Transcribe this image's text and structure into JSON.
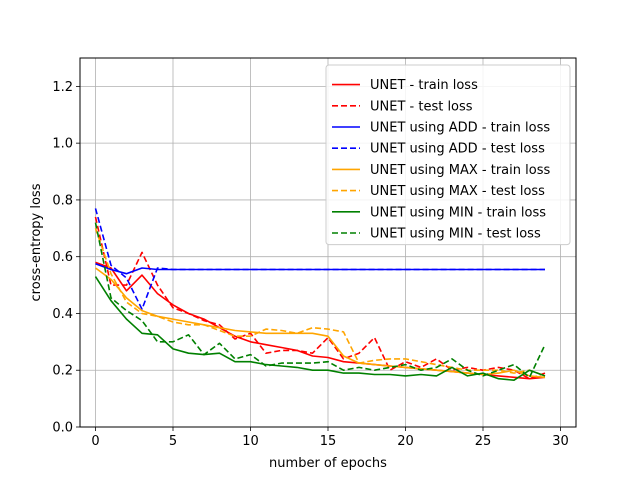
{
  "chart_data": {
    "type": "line",
    "xlabel": "number of epochs",
    "ylabel": "cross-entropy loss",
    "xlim": [
      -1,
      31
    ],
    "ylim": [
      0,
      1.3
    ],
    "xticks": [
      0,
      5,
      10,
      15,
      20,
      25,
      30
    ],
    "yticks": [
      0.0,
      0.2,
      0.4,
      0.6,
      0.8,
      1.0,
      1.2
    ],
    "xtick_labels": [
      "0",
      "5",
      "10",
      "15",
      "20",
      "25",
      "30"
    ],
    "ytick_labels": [
      "0.0",
      "0.2",
      "0.4",
      "0.6",
      "0.8",
      "1.0",
      "1.2"
    ],
    "grid": true,
    "legend_position": "upper-right",
    "x": [
      0,
      1,
      2,
      3,
      4,
      5,
      6,
      7,
      8,
      9,
      10,
      11,
      12,
      13,
      14,
      15,
      16,
      17,
      18,
      19,
      20,
      21,
      22,
      23,
      24,
      25,
      26,
      27,
      28,
      29
    ],
    "series": [
      {
        "name": "UNET - train loss",
        "color": "#ff0000",
        "dash": "solid",
        "values": [
          0.58,
          0.56,
          0.48,
          0.535,
          0.47,
          0.43,
          0.4,
          0.38,
          0.35,
          0.32,
          0.3,
          0.29,
          0.28,
          0.27,
          0.25,
          0.245,
          0.23,
          0.225,
          0.22,
          0.215,
          0.21,
          0.205,
          0.2,
          0.195,
          0.19,
          0.185,
          0.18,
          0.175,
          0.17,
          0.175
        ]
      },
      {
        "name": "UNET - test loss",
        "color": "#ff0000",
        "dash": "dashed",
        "values": [
          0.74,
          0.5,
          0.5,
          0.615,
          0.5,
          0.42,
          0.4,
          0.375,
          0.36,
          0.31,
          0.33,
          0.26,
          0.27,
          0.27,
          0.26,
          0.315,
          0.24,
          0.26,
          0.315,
          0.2,
          0.23,
          0.21,
          0.24,
          0.2,
          0.21,
          0.2,
          0.21,
          0.2,
          0.17,
          0.19
        ]
      },
      {
        "name": "UNET using ADD - train loss",
        "color": "#0000ff",
        "dash": "solid",
        "values": [
          0.575,
          0.555,
          0.54,
          0.56,
          0.555,
          0.555,
          0.555,
          0.555,
          0.555,
          0.555,
          0.555,
          0.555,
          0.555,
          0.555,
          0.555,
          0.555,
          0.555,
          0.555,
          0.555,
          0.555,
          0.555,
          0.555,
          0.555,
          0.555,
          0.555,
          0.555,
          0.555,
          0.555,
          0.555,
          0.555
        ]
      },
      {
        "name": "UNET using ADD - test loss",
        "color": "#0000ff",
        "dash": "dashed",
        "values": [
          0.77,
          0.57,
          0.525,
          0.415,
          0.56,
          0.555,
          0.555,
          0.555,
          0.555,
          0.555,
          0.555,
          0.555,
          0.555,
          0.555,
          0.555,
          0.555,
          0.555,
          0.555,
          0.555,
          0.555,
          0.555,
          0.555,
          0.555,
          0.555,
          0.555,
          0.555,
          0.555,
          0.555,
          0.555,
          0.555
        ]
      },
      {
        "name": "UNET using MAX - train loss",
        "color": "#ffa500",
        "dash": "solid",
        "values": [
          0.56,
          0.52,
          0.455,
          0.41,
          0.39,
          0.38,
          0.37,
          0.36,
          0.35,
          0.34,
          0.335,
          0.33,
          0.33,
          0.33,
          0.33,
          0.32,
          0.25,
          0.225,
          0.22,
          0.215,
          0.21,
          0.205,
          0.2,
          0.195,
          0.19,
          0.185,
          0.19,
          0.2,
          0.18,
          0.175
        ]
      },
      {
        "name": "UNET using MAX - test loss",
        "color": "#ffa500",
        "dash": "dashed",
        "values": [
          0.7,
          0.54,
          0.44,
          0.4,
          0.39,
          0.37,
          0.36,
          0.36,
          0.34,
          0.32,
          0.32,
          0.345,
          0.34,
          0.33,
          0.35,
          0.345,
          0.335,
          0.225,
          0.235,
          0.24,
          0.24,
          0.23,
          0.22,
          0.21,
          0.2,
          0.2,
          0.2,
          0.19,
          0.2,
          0.18
        ]
      },
      {
        "name": "UNET using MIN - train loss",
        "color": "#008000",
        "dash": "solid",
        "values": [
          0.53,
          0.445,
          0.38,
          0.33,
          0.325,
          0.275,
          0.26,
          0.255,
          0.26,
          0.23,
          0.23,
          0.22,
          0.215,
          0.21,
          0.2,
          0.2,
          0.19,
          0.19,
          0.185,
          0.185,
          0.18,
          0.185,
          0.18,
          0.21,
          0.18,
          0.19,
          0.17,
          0.165,
          0.2,
          0.18
        ]
      },
      {
        "name": "UNET using MIN - test loss",
        "color": "#008000",
        "dash": "dashed",
        "values": [
          0.72,
          0.455,
          0.41,
          0.375,
          0.3,
          0.3,
          0.325,
          0.255,
          0.295,
          0.24,
          0.255,
          0.215,
          0.225,
          0.225,
          0.225,
          0.23,
          0.2,
          0.21,
          0.2,
          0.21,
          0.22,
          0.2,
          0.21,
          0.24,
          0.2,
          0.18,
          0.2,
          0.22,
          0.175,
          0.29
        ]
      }
    ]
  }
}
